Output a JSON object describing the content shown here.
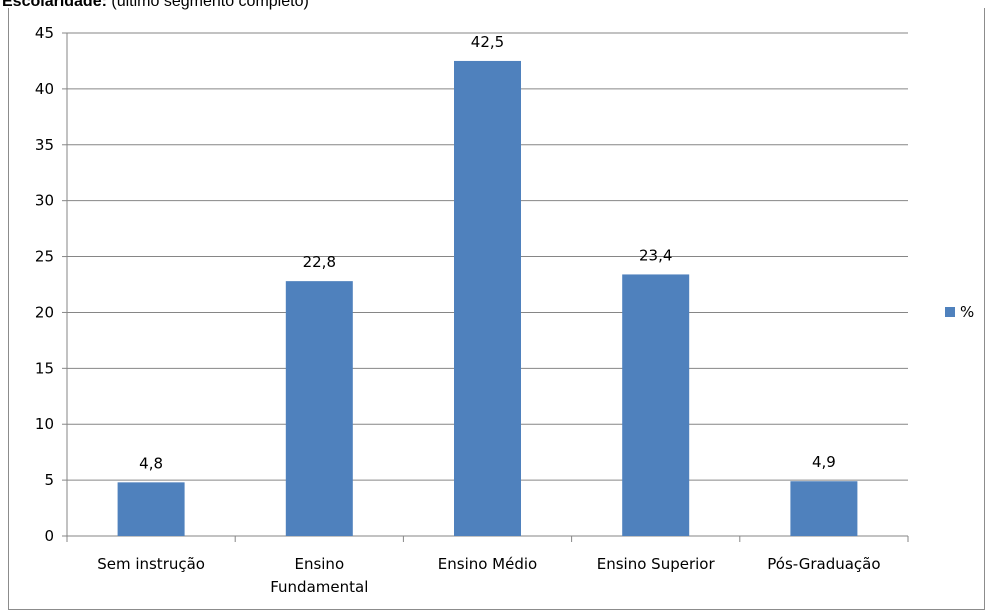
{
  "header": {
    "title_bold": "Escolaridade:",
    "title_rest": " (último segmento completo)"
  },
  "chart_data": {
    "type": "bar",
    "title": "Escolaridade: (último segmento completo)",
    "categories": [
      [
        "Sem instrução"
      ],
      [
        "Ensino",
        "Fundamental"
      ],
      [
        "Ensino Médio"
      ],
      [
        "Ensino Superior"
      ],
      [
        "Pós-Graduação"
      ]
    ],
    "series": [
      {
        "name": "%",
        "values": [
          4.8,
          22.8,
          42.5,
          23.4,
          4.9
        ]
      }
    ],
    "data_labels": [
      "4,8",
      "22,8",
      "42,5",
      "23,4",
      "4,9"
    ],
    "ylim": [
      0,
      45
    ],
    "yticks": [
      0,
      5,
      10,
      15,
      20,
      25,
      30,
      35,
      40,
      45
    ],
    "grid": true,
    "legend": "right",
    "bar_color": "#4f81bd",
    "xlabel": "",
    "ylabel": ""
  }
}
